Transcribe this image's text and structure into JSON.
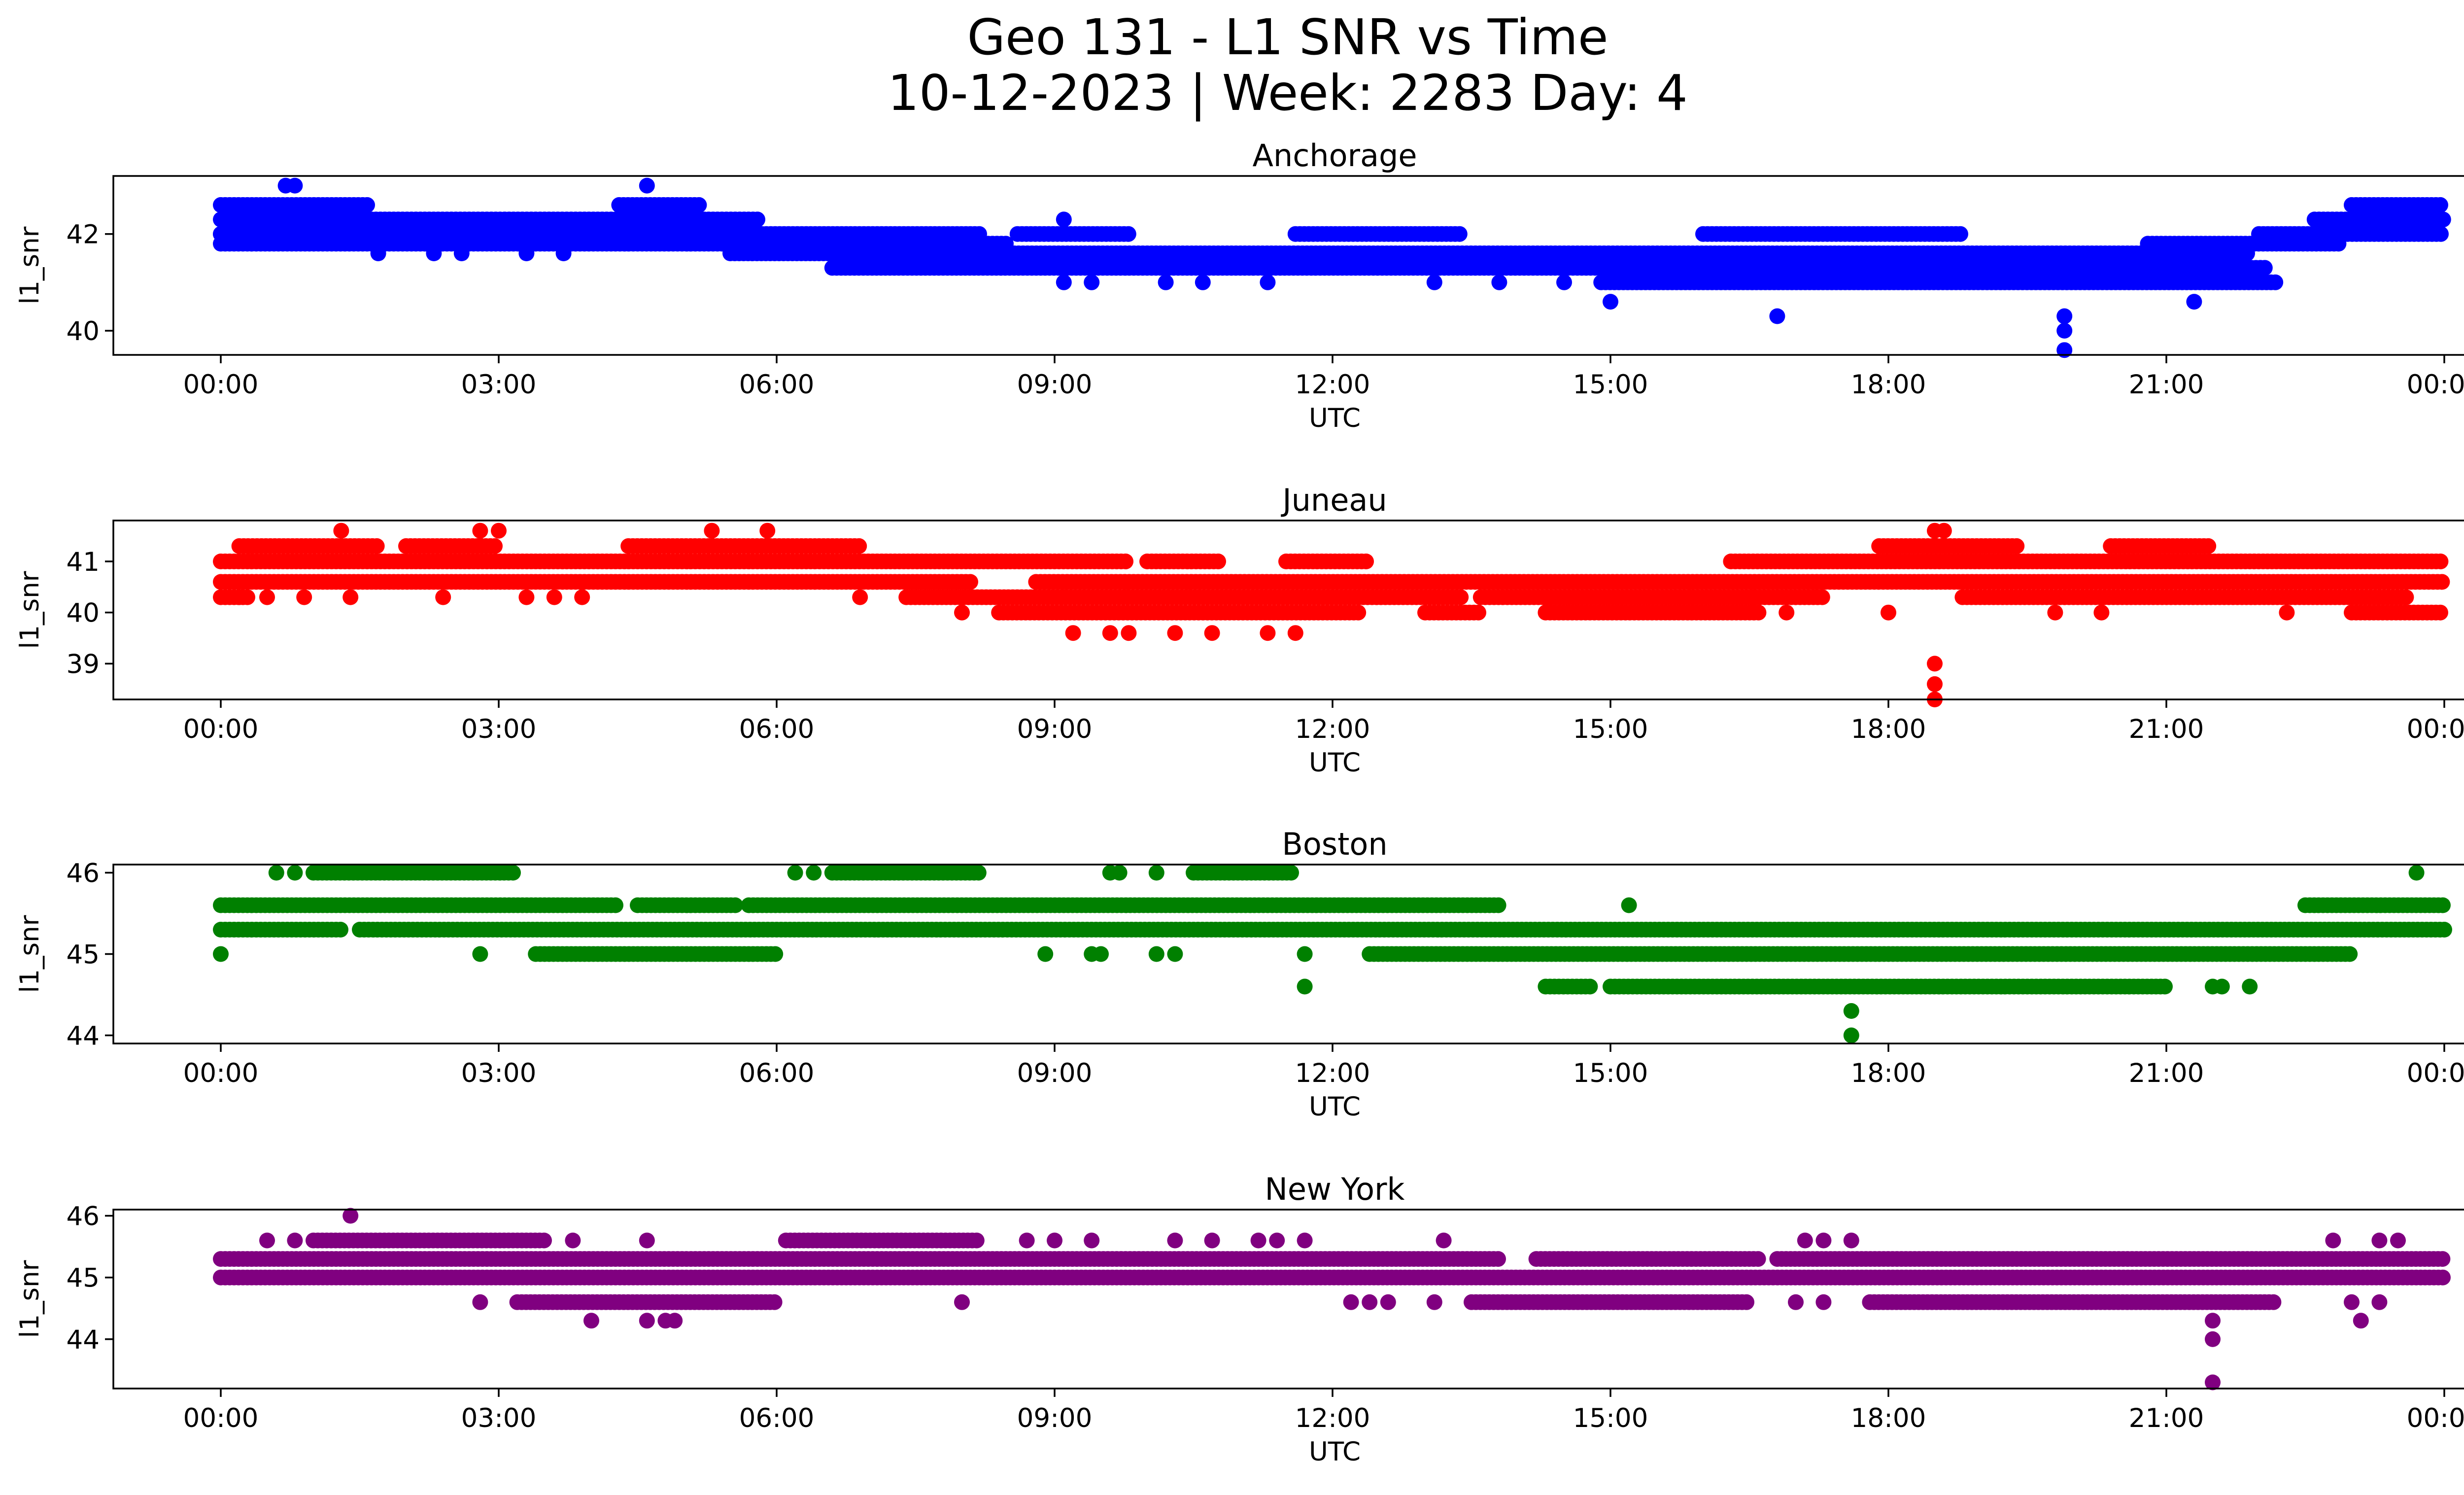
{
  "figure": {
    "title_line1": "Geo 131 - L1 SNR vs Time",
    "title_line2": "10-12-2023 | Week: 2283 Day: 4"
  },
  "chart_data": [
    {
      "type": "scatter",
      "title": "Anchorage",
      "xlabel": "UTC",
      "ylabel": "l1_snr",
      "color": "#0000ff",
      "xlim": [
        0,
        24
      ],
      "ylim": [
        39.5,
        43.2
      ],
      "xticks": [
        "00:00",
        "03:00",
        "06:00",
        "09:00",
        "12:00",
        "15:00",
        "18:00",
        "21:00",
        "00:00"
      ],
      "yticks": [
        40,
        42
      ],
      "grid": false,
      "x_units": "hours UTC",
      "bands": [
        {
          "y": 42.6,
          "x_ranges": [
            [
              0.0,
              1.6
            ],
            [
              4.3,
              5.2
            ],
            [
              23.0,
              24.0
            ]
          ]
        },
        {
          "y": 42.3,
          "x_ranges": [
            [
              0.0,
              5.8
            ],
            [
              22.6,
              24.0
            ]
          ]
        },
        {
          "y": 42.0,
          "x_ranges": [
            [
              0.0,
              8.2
            ],
            [
              8.6,
              9.8
            ],
            [
              11.6,
              13.4
            ],
            [
              16.0,
              18.8
            ],
            [
              22.0,
              24.0
            ]
          ]
        },
        {
          "y": 41.8,
          "x_ranges": [
            [
              0.0,
              8.5
            ],
            [
              20.8,
              22.9
            ]
          ]
        },
        {
          "y": 41.6,
          "x_ranges": [
            [
              5.5,
              21.9
            ]
          ]
        },
        {
          "y": 41.3,
          "x_ranges": [
            [
              6.6,
              22.1
            ]
          ]
        },
        {
          "y": 41.0,
          "x_ranges": [
            [
              14.9,
              22.2
            ]
          ]
        }
      ],
      "points": [
        [
          0.7,
          43.0
        ],
        [
          0.8,
          43.0
        ],
        [
          4.6,
          43.0
        ],
        [
          0.0,
          42.0
        ],
        [
          0.3,
          42.0
        ],
        [
          0.5,
          42.0
        ],
        [
          1.7,
          41.6
        ],
        [
          2.3,
          41.6
        ],
        [
          2.6,
          41.6
        ],
        [
          3.3,
          41.6
        ],
        [
          3.7,
          41.6
        ],
        [
          9.1,
          42.3
        ],
        [
          9.1,
          41.0
        ],
        [
          9.4,
          41.0
        ],
        [
          10.2,
          41.0
        ],
        [
          10.6,
          41.0
        ],
        [
          11.3,
          41.0
        ],
        [
          13.1,
          41.0
        ],
        [
          13.8,
          41.0
        ],
        [
          14.5,
          41.0
        ],
        [
          15.0,
          40.6
        ],
        [
          16.8,
          40.3
        ],
        [
          21.3,
          40.6
        ],
        [
          19.9,
          40.3
        ],
        [
          19.9,
          40.0
        ],
        [
          19.9,
          39.6
        ]
      ]
    },
    {
      "type": "scatter",
      "title": "Juneau",
      "xlabel": "UTC",
      "ylabel": "l1_snr",
      "color": "#ff0000",
      "xlim": [
        0,
        24
      ],
      "ylim": [
        38.3,
        41.8
      ],
      "xticks": [
        "00:00",
        "03:00",
        "06:00",
        "09:00",
        "12:00",
        "15:00",
        "18:00",
        "21:00",
        "00:00"
      ],
      "yticks": [
        39,
        40,
        41
      ],
      "grid": false,
      "x_units": "hours UTC",
      "bands": [
        {
          "y": 41.3,
          "x_ranges": [
            [
              0.2,
              1.7
            ],
            [
              2.0,
              3.0
            ],
            [
              4.4,
              6.9
            ],
            [
              17.9,
              19.4
            ],
            [
              20.4,
              21.5
            ]
          ]
        },
        {
          "y": 41.0,
          "x_ranges": [
            [
              0.0,
              9.8
            ],
            [
              10.0,
              10.8
            ],
            [
              11.5,
              12.4
            ],
            [
              16.3,
              24.0
            ]
          ]
        },
        {
          "y": 40.6,
          "x_ranges": [
            [
              0.0,
              8.1
            ],
            [
              8.8,
              24.0
            ]
          ]
        },
        {
          "y": 40.3,
          "x_ranges": [
            [
              0.0,
              0.3
            ],
            [
              7.4,
              13.4
            ],
            [
              13.6,
              17.3
            ],
            [
              18.8,
              23.6
            ]
          ]
        },
        {
          "y": 40.0,
          "x_ranges": [
            [
              8.4,
              12.3
            ],
            [
              13.0,
              13.6
            ],
            [
              14.3,
              16.6
            ],
            [
              23.0,
              24.0
            ]
          ]
        }
      ],
      "points": [
        [
          1.3,
          41.6
        ],
        [
          2.8,
          41.6
        ],
        [
          3.0,
          41.6
        ],
        [
          5.3,
          41.6
        ],
        [
          5.9,
          41.6
        ],
        [
          18.5,
          41.6
        ],
        [
          18.6,
          41.6
        ],
        [
          0.2,
          40.3
        ],
        [
          0.5,
          40.3
        ],
        [
          0.9,
          40.3
        ],
        [
          1.4,
          40.3
        ],
        [
          2.4,
          40.3
        ],
        [
          3.3,
          40.3
        ],
        [
          3.6,
          40.3
        ],
        [
          3.9,
          40.3
        ],
        [
          6.9,
          40.3
        ],
        [
          8.0,
          40.0
        ],
        [
          16.9,
          40.0
        ],
        [
          18.0,
          40.0
        ],
        [
          19.8,
          40.0
        ],
        [
          20.3,
          40.0
        ],
        [
          22.3,
          40.0
        ],
        [
          9.2,
          39.6
        ],
        [
          9.6,
          39.6
        ],
        [
          9.8,
          39.6
        ],
        [
          10.3,
          39.6
        ],
        [
          10.7,
          39.6
        ],
        [
          11.3,
          39.6
        ],
        [
          11.6,
          39.6
        ],
        [
          18.5,
          39.0
        ],
        [
          18.5,
          38.6
        ],
        [
          18.5,
          38.3
        ]
      ]
    },
    {
      "type": "scatter",
      "title": "Boston",
      "xlabel": "UTC",
      "ylabel": "l1_snr",
      "color": "#008000",
      "xlim": [
        0,
        24
      ],
      "ylim": [
        43.9,
        46.1
      ],
      "xticks": [
        "00:00",
        "03:00",
        "06:00",
        "09:00",
        "12:00",
        "15:00",
        "18:00",
        "21:00",
        "00:00"
      ],
      "yticks": [
        44,
        45,
        46
      ],
      "grid": false,
      "x_units": "hours UTC",
      "bands": [
        {
          "y": 46.0,
          "x_ranges": [
            [
              1.0,
              3.2
            ],
            [
              6.6,
              8.2
            ],
            [
              10.5,
              11.6
            ]
          ]
        },
        {
          "y": 45.6,
          "x_ranges": [
            [
              0.0,
              4.3
            ],
            [
              4.5,
              5.6
            ],
            [
              5.7,
              13.8
            ],
            [
              22.5,
              24.0
            ]
          ]
        },
        {
          "y": 45.3,
          "x_ranges": [
            [
              0.0,
              1.3
            ],
            [
              1.5,
              24.0
            ]
          ]
        },
        {
          "y": 45.0,
          "x_ranges": [
            [
              3.4,
              6.0
            ],
            [
              12.4,
              23.0
            ]
          ]
        },
        {
          "y": 44.6,
          "x_ranges": [
            [
              14.3,
              14.8
            ],
            [
              15.0,
              21.0
            ]
          ]
        }
      ],
      "points": [
        [
          0.6,
          46.0
        ],
        [
          0.8,
          46.0
        ],
        [
          6.2,
          46.0
        ],
        [
          6.4,
          46.0
        ],
        [
          9.6,
          46.0
        ],
        [
          9.7,
          46.0
        ],
        [
          10.1,
          46.0
        ],
        [
          23.7,
          46.0
        ],
        [
          15.2,
          45.6
        ],
        [
          0.0,
          45.0
        ],
        [
          2.8,
          45.0
        ],
        [
          8.9,
          45.0
        ],
        [
          9.4,
          45.0
        ],
        [
          9.5,
          45.0
        ],
        [
          10.1,
          45.0
        ],
        [
          10.3,
          45.0
        ],
        [
          11.7,
          45.0
        ],
        [
          11.7,
          44.6
        ],
        [
          21.5,
          44.6
        ],
        [
          21.6,
          44.6
        ],
        [
          21.9,
          44.6
        ],
        [
          17.6,
          44.3
        ],
        [
          17.6,
          44.0
        ]
      ]
    },
    {
      "type": "scatter",
      "title": "New York",
      "xlabel": "UTC",
      "ylabel": "l1_snr",
      "color": "#800080",
      "xlim": [
        0,
        24
      ],
      "ylim": [
        43.2,
        46.1
      ],
      "xticks": [
        "00:00",
        "03:00",
        "06:00",
        "09:00",
        "12:00",
        "15:00",
        "18:00",
        "21:00",
        "00:00"
      ],
      "yticks": [
        44,
        45,
        46
      ],
      "grid": false,
      "x_units": "hours UTC",
      "bands": [
        {
          "y": 45.6,
          "x_ranges": [
            [
              1.0,
              3.5
            ],
            [
              6.1,
              8.2
            ]
          ]
        },
        {
          "y": 45.3,
          "x_ranges": [
            [
              0.0,
              13.8
            ],
            [
              14.2,
              16.6
            ],
            [
              16.8,
              24.0
            ]
          ]
        },
        {
          "y": 45.0,
          "x_ranges": [
            [
              0.0,
              24.0
            ]
          ]
        },
        {
          "y": 44.6,
          "x_ranges": [
            [
              3.2,
              6.0
            ],
            [
              13.5,
              16.5
            ],
            [
              17.8,
              22.2
            ]
          ]
        }
      ],
      "points": [
        [
          1.4,
          46.0
        ],
        [
          0.5,
          45.6
        ],
        [
          0.8,
          45.6
        ],
        [
          3.8,
          45.6
        ],
        [
          4.6,
          45.6
        ],
        [
          8.7,
          45.6
        ],
        [
          9.0,
          45.6
        ],
        [
          9.4,
          45.6
        ],
        [
          10.3,
          45.6
        ],
        [
          10.7,
          45.6
        ],
        [
          11.2,
          45.6
        ],
        [
          11.4,
          45.6
        ],
        [
          11.7,
          45.6
        ],
        [
          13.2,
          45.6
        ],
        [
          17.1,
          45.6
        ],
        [
          17.3,
          45.6
        ],
        [
          17.6,
          45.6
        ],
        [
          22.8,
          45.6
        ],
        [
          23.3,
          45.6
        ],
        [
          23.5,
          45.6
        ],
        [
          2.8,
          44.6
        ],
        [
          8.0,
          44.6
        ],
        [
          12.2,
          44.6
        ],
        [
          12.4,
          44.6
        ],
        [
          12.6,
          44.6
        ],
        [
          13.1,
          44.6
        ],
        [
          17.0,
          44.6
        ],
        [
          17.3,
          44.6
        ],
        [
          23.0,
          44.6
        ],
        [
          23.3,
          44.6
        ],
        [
          4.0,
          44.3
        ],
        [
          4.6,
          44.3
        ],
        [
          4.8,
          44.3
        ],
        [
          4.9,
          44.3
        ],
        [
          23.1,
          44.3
        ],
        [
          21.5,
          44.3
        ],
        [
          21.5,
          44.0
        ],
        [
          21.5,
          43.3
        ]
      ]
    }
  ]
}
